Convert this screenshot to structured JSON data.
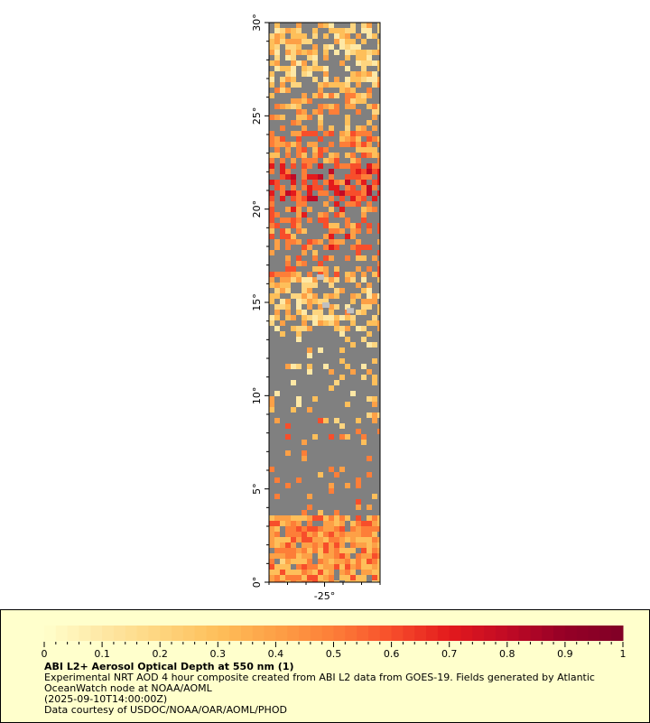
{
  "map": {
    "lat_ticks": [
      "0°",
      "5°",
      "10°",
      "15°",
      "20°",
      "25°",
      "30°"
    ],
    "lon_ticks": [
      "-25°"
    ],
    "lat_range": [
      0,
      30
    ],
    "lon_range": [
      -28,
      -22
    ],
    "background_color": "#808080",
    "missing_color": "#c0c0c0"
  },
  "colorbar": {
    "ticks": [
      "0",
      "0.1",
      "0.2",
      "0.3",
      "0.4",
      "0.5",
      "0.6",
      "0.7",
      "0.8",
      "0.9",
      "1"
    ],
    "range": [
      0,
      1
    ],
    "colors": [
      "#ffffcc",
      "#fee8a5",
      "#fed57f",
      "#febf5a",
      "#fda046",
      "#fd7e38",
      "#f74e2b",
      "#e31a1c",
      "#c00a25",
      "#950026",
      "#800026"
    ]
  },
  "caption": {
    "title": "ABI L2+ Aerosol Optical Depth at 550 nm (1)",
    "desc_line1": "Experimental NRT AOD 4 hour composite created from ABI L2 data from GOES-19. Fields generated by Atlantic",
    "desc_line2": "OceanWatch node at NOAA/AOML",
    "time": "(2025-09-10T14:00:00Z)",
    "credit": "Data courtesy of USDOC/NOAA/OAR/AOML/PHOD"
  }
}
